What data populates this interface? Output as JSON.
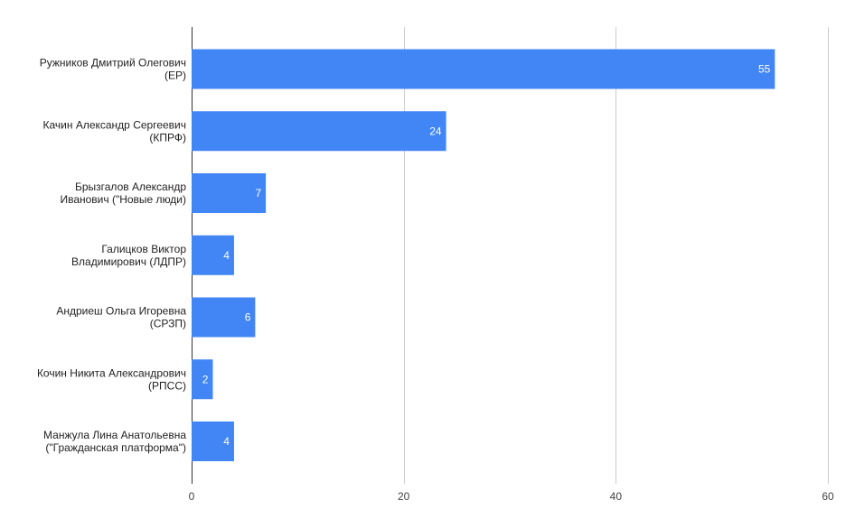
{
  "chart_data": {
    "type": "bar",
    "orientation": "horizontal",
    "categories": [
      [
        "Ружников Дмитрий Олегович",
        "(ЕР)"
      ],
      [
        "Качин Александр Сергеевич",
        "(КПРФ)"
      ],
      [
        "Брызгалов Александр",
        "Иванович (\"Новые люди)"
      ],
      [
        "Галицков Виктор",
        "Владимирович (ЛДПР)"
      ],
      [
        "Андриеш Ольга Игоревна",
        "(СРЗП)"
      ],
      [
        "Кочин Никита Александрович",
        "(РПСС)"
      ],
      [
        "Манжула Лина Анатольевна",
        "(\"Гражданская платформа\")"
      ]
    ],
    "values": [
      55,
      24,
      7,
      4,
      6,
      2,
      4
    ],
    "xlim": [
      0,
      60
    ],
    "xticks": [
      0,
      20,
      40,
      60
    ],
    "grid": true,
    "bar_color": "#4285f4",
    "data_labels": true
  }
}
